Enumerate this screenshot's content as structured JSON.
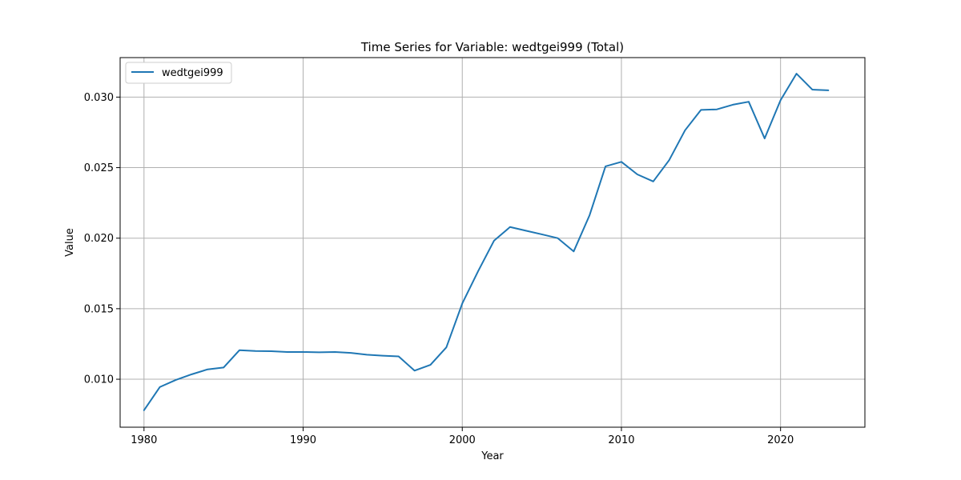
{
  "chart_data": {
    "type": "line",
    "title": "Time Series for Variable: wedtgei999 (Total)",
    "xlabel": "Year",
    "ylabel": "Value",
    "xlim": [
      1978.5,
      2025.3
    ],
    "ylim": [
      0.0066,
      0.0328
    ],
    "xticks": [
      1980,
      1990,
      2000,
      2010,
      2020
    ],
    "xtick_labels": [
      "1980",
      "1990",
      "2000",
      "2010",
      "2020"
    ],
    "yticks": [
      0.01,
      0.015,
      0.02,
      0.025,
      0.03
    ],
    "ytick_labels": [
      "0.010",
      "0.015",
      "0.020",
      "0.025",
      "0.030"
    ],
    "grid": true,
    "legend_position": "top-left",
    "series": [
      {
        "name": "wedtgei999",
        "color": "#1f77b4",
        "x": [
          1980,
          1981,
          1982,
          1983,
          1984,
          1985,
          1986,
          1987,
          1988,
          1989,
          1990,
          1991,
          1992,
          1993,
          1994,
          1995,
          1996,
          1997,
          1998,
          1999,
          2000,
          2001,
          2002,
          2003,
          2004,
          2005,
          2006,
          2007,
          2008,
          2009,
          2010,
          2011,
          2012,
          2013,
          2014,
          2015,
          2016,
          2017,
          2018,
          2019,
          2020,
          2021,
          2022,
          2023
        ],
        "y": [
          0.0078,
          0.00945,
          0.00995,
          0.01035,
          0.0107,
          0.01083,
          0.01206,
          0.012,
          0.01199,
          0.01193,
          0.01193,
          0.01191,
          0.01193,
          0.01187,
          0.01174,
          0.01167,
          0.01162,
          0.01061,
          0.01102,
          0.01226,
          0.01537,
          0.01767,
          0.01983,
          0.02079,
          0.02053,
          0.02027,
          0.02,
          0.01906,
          0.02163,
          0.02509,
          0.02541,
          0.02452,
          0.02402,
          0.02553,
          0.02765,
          0.02909,
          0.02913,
          0.02946,
          0.02967,
          0.02707,
          0.02978,
          0.03166,
          0.03053,
          0.03048
        ]
      }
    ]
  }
}
